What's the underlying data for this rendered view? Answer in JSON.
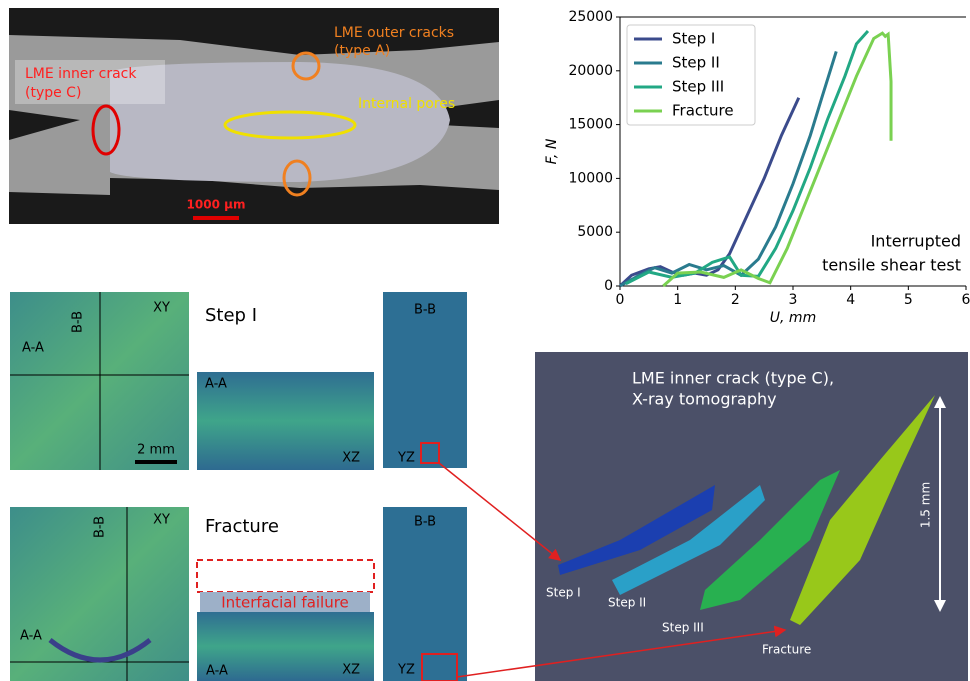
{
  "chart_data": {
    "type": "line",
    "xlabel": "U, mm",
    "ylabel": "F, N",
    "annotation": [
      "Interrupted",
      "tensile shear test"
    ],
    "xlim": [
      0,
      6
    ],
    "xticks": [
      0,
      1,
      2,
      3,
      4,
      5,
      6
    ],
    "ylim": [
      0,
      25000
    ],
    "yticks": [
      0,
      5000,
      10000,
      15000,
      20000,
      25000
    ],
    "legend": "upper left",
    "series": [
      {
        "name": "Step I",
        "color": "#3b4b8c",
        "x": [
          0,
          0.2,
          0.5,
          0.7,
          0.9,
          1.1,
          1.3,
          1.5,
          1.7,
          1.9,
          2.2,
          2.5,
          2.8,
          3.1
        ],
        "values": [
          0,
          1000,
          1600,
          1800,
          1300,
          1000,
          1200,
          1000,
          1500,
          3000,
          6500,
          10000,
          14000,
          17500
        ]
      },
      {
        "name": "Step II",
        "color": "#2a7b8e",
        "x": [
          0,
          0.3,
          0.6,
          0.9,
          1.2,
          1.5,
          1.8,
          2.1,
          2.4,
          2.7,
          3.0,
          3.3,
          3.5,
          3.75
        ],
        "values": [
          0,
          900,
          1700,
          1200,
          2000,
          1500,
          1900,
          1000,
          2500,
          5500,
          9500,
          14000,
          17500,
          21800
        ]
      },
      {
        "name": "Step III",
        "color": "#22a884",
        "x": [
          0.1,
          0.5,
          0.9,
          1.3,
          1.6,
          1.9,
          2.1,
          2.4,
          2.7,
          3.0,
          3.3,
          3.6,
          3.9,
          4.1,
          4.3
        ],
        "values": [
          200,
          1300,
          800,
          1200,
          2200,
          2700,
          1000,
          900,
          3500,
          7000,
          11000,
          15500,
          19500,
          22500,
          23700
        ]
      },
      {
        "name": "Fracture",
        "color": "#7ad151",
        "x": [
          0.75,
          1.0,
          1.4,
          1.8,
          2.1,
          2.4,
          2.6,
          2.9,
          3.2,
          3.5,
          3.8,
          4.1,
          4.4,
          4.55,
          4.6,
          4.65,
          4.7,
          4.7
        ],
        "values": [
          0,
          1200,
          1300,
          800,
          1500,
          700,
          300,
          3500,
          7500,
          11500,
          15500,
          19500,
          23000,
          23500,
          23200,
          23400,
          19000,
          13500
        ]
      }
    ]
  },
  "micrograph": {
    "outer_cracks": [
      "LME outer cracks",
      "(type A)"
    ],
    "inner_crack": [
      "LME inner crack",
      "(type C)"
    ],
    "pores": "Internal pores",
    "scale": "1000 µm"
  },
  "tomography": {
    "step1": "Step I",
    "fracture": "Fracture",
    "xy": "XY",
    "bb": "B-B",
    "aa": "A-A",
    "xz": "XZ",
    "yz": "YZ",
    "scale": "2 mm",
    "interfacial": "Interfacial failure"
  },
  "render3d": {
    "title": [
      "LME inner crack (type C),",
      "X-ray tomography"
    ],
    "scale": "1.5 mm",
    "labels": [
      "Step I",
      "Step II",
      "Step III",
      "Fracture"
    ]
  }
}
